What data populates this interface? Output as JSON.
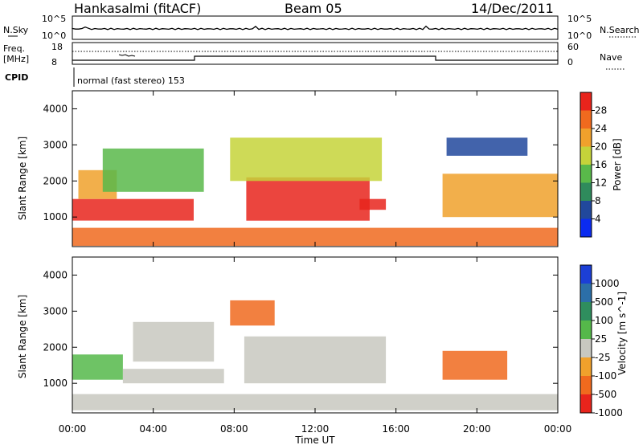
{
  "header": {
    "station": "Hankasalmi (fitACF)",
    "beam": "Beam 05",
    "date": "14/Dec/2011"
  },
  "left_labels": {
    "nsky": "N.Sky",
    "freq": "Freq.",
    "freq_unit": "[MHz]",
    "cpid": "CPID"
  },
  "right_labels": {
    "nsearch": "N.Search",
    "nave": "Nave"
  },
  "noise_axis": {
    "top": "10^5",
    "bottom": "10^0"
  },
  "freq_axis": {
    "top": "18",
    "bottom": "8"
  },
  "nave_axis": {
    "top": "60",
    "bottom": "0"
  },
  "cpid_text": "normal (fast stereo) 153",
  "chart_data": [
    {
      "type": "heatmap",
      "title": "Power",
      "ylabel": "Slant Range [km]",
      "xlabel": "Time UT",
      "xlim": [
        "00:00",
        "24:00"
      ],
      "ylim": [
        180,
        4500
      ],
      "x_ticks": [
        "00:00",
        "04:00",
        "08:00",
        "12:00",
        "16:00",
        "20:00",
        "00:00"
      ],
      "y_ticks": [
        "1000",
        "2000",
        "3000",
        "4000"
      ],
      "colorbar": {
        "label": "Power [dB]",
        "ticks": [
          "4",
          "8",
          "12",
          "16",
          "20",
          "24",
          "28"
        ],
        "colors": [
          "#0b2bf0",
          "#21489c",
          "#2f8b5c",
          "#59b94a",
          "#c5d33a",
          "#f0a12c",
          "#f06a1e",
          "#e8241c"
        ]
      },
      "regions": [
        {
          "t": [
            0.0,
            6.0
          ],
          "r": [
            900,
            1500
          ],
          "level": 7
        },
        {
          "t": [
            0.3,
            2.2
          ],
          "r": [
            1500,
            2300
          ],
          "level": 5
        },
        {
          "t": [
            1.5,
            6.5
          ],
          "r": [
            1700,
            2900
          ],
          "level": 3
        },
        {
          "t": [
            8.6,
            14.7
          ],
          "r": [
            900,
            2100
          ],
          "level": 7
        },
        {
          "t": [
            7.8,
            15.3
          ],
          "r": [
            2000,
            3200
          ],
          "level": 4
        },
        {
          "t": [
            14.2,
            15.5
          ],
          "r": [
            1200,
            1500
          ],
          "level": 7
        },
        {
          "t": [
            18.3,
            24.0
          ],
          "r": [
            1000,
            2200
          ],
          "level": 5
        },
        {
          "t": [
            18.5,
            22.5
          ],
          "r": [
            2700,
            3200
          ],
          "level": 1
        },
        {
          "t": [
            0.0,
            24.0
          ],
          "r": [
            200,
            700
          ],
          "level": 6
        }
      ]
    },
    {
      "type": "heatmap",
      "title": "Velocity",
      "ylabel": "Slant Range [km]",
      "xlabel": "Time UT",
      "xlim": [
        "00:00",
        "24:00"
      ],
      "ylim": [
        180,
        4500
      ],
      "x_ticks": [
        "00:00",
        "04:00",
        "08:00",
        "12:00",
        "16:00",
        "20:00",
        "00:00"
      ],
      "y_ticks": [
        "1000",
        "2000",
        "3000",
        "4000"
      ],
      "colorbar": {
        "label": "Velocity [m s^-1]",
        "ticks": [
          "1000",
          "500",
          "100",
          "25",
          "-25",
          "-100",
          "-500",
          "-1000"
        ],
        "colors": [
          "#1c3fd6",
          "#2c6fa8",
          "#2f8e5e",
          "#55b84a",
          "#c8c8c0",
          "#f0a12c",
          "#f06a1e",
          "#e8241c"
        ]
      },
      "regions": [
        {
          "t": [
            0.0,
            2.5
          ],
          "r": [
            1100,
            1800
          ],
          "level": 3
        },
        {
          "t": [
            2.5,
            7.5
          ],
          "r": [
            1000,
            1400
          ],
          "level": 4
        },
        {
          "t": [
            3.0,
            7.0
          ],
          "r": [
            1600,
            2700
          ],
          "level": 4
        },
        {
          "t": [
            8.5,
            15.5
          ],
          "r": [
            1000,
            2300
          ],
          "level": 4
        },
        {
          "t": [
            7.8,
            10.0
          ],
          "r": [
            2600,
            3300
          ],
          "level": 6
        },
        {
          "t": [
            18.3,
            21.5
          ],
          "r": [
            1100,
            1900
          ],
          "level": 6
        },
        {
          "t": [
            0.0,
            24.0
          ],
          "r": [
            250,
            700
          ],
          "level": 4
        }
      ]
    }
  ]
}
